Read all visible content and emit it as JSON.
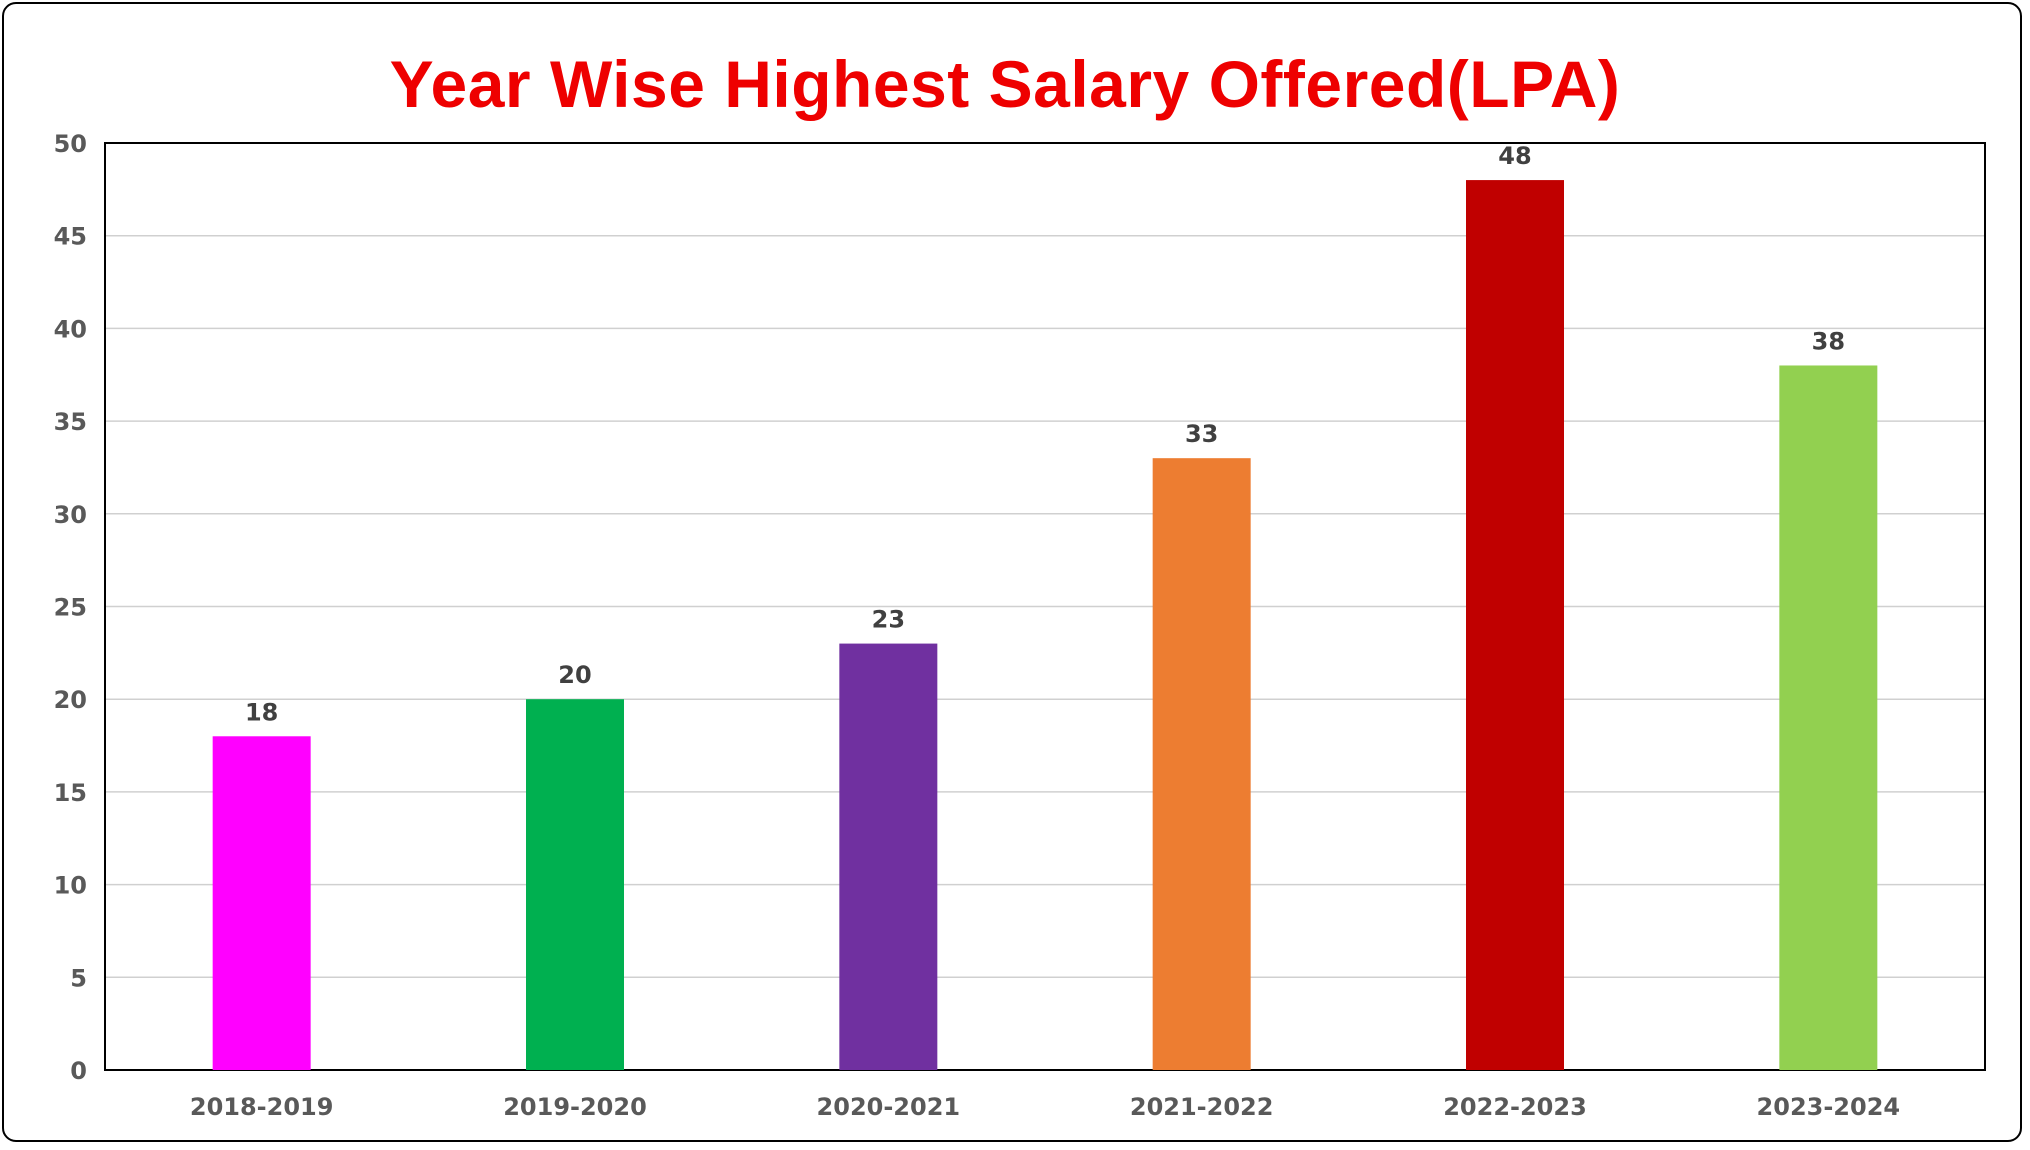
{
  "chart_data": {
    "type": "bar",
    "title": "Year Wise Highest Salary Offered(LPA)",
    "xlabel": "",
    "ylabel": "",
    "ylim": [
      0,
      50
    ],
    "yticks": [
      0,
      5,
      10,
      15,
      20,
      25,
      30,
      35,
      40,
      45,
      50
    ],
    "grid": true,
    "categories": [
      "2018-2019",
      "2019-2020",
      "2020-2021",
      "2021-2022",
      "2022-2023",
      "2023-2024"
    ],
    "values": [
      18,
      20,
      23,
      33,
      48,
      38
    ],
    "colors": [
      "#ff00ff",
      "#00b050",
      "#7030a0",
      "#ed7d31",
      "#c00000",
      "#92d050"
    ]
  }
}
